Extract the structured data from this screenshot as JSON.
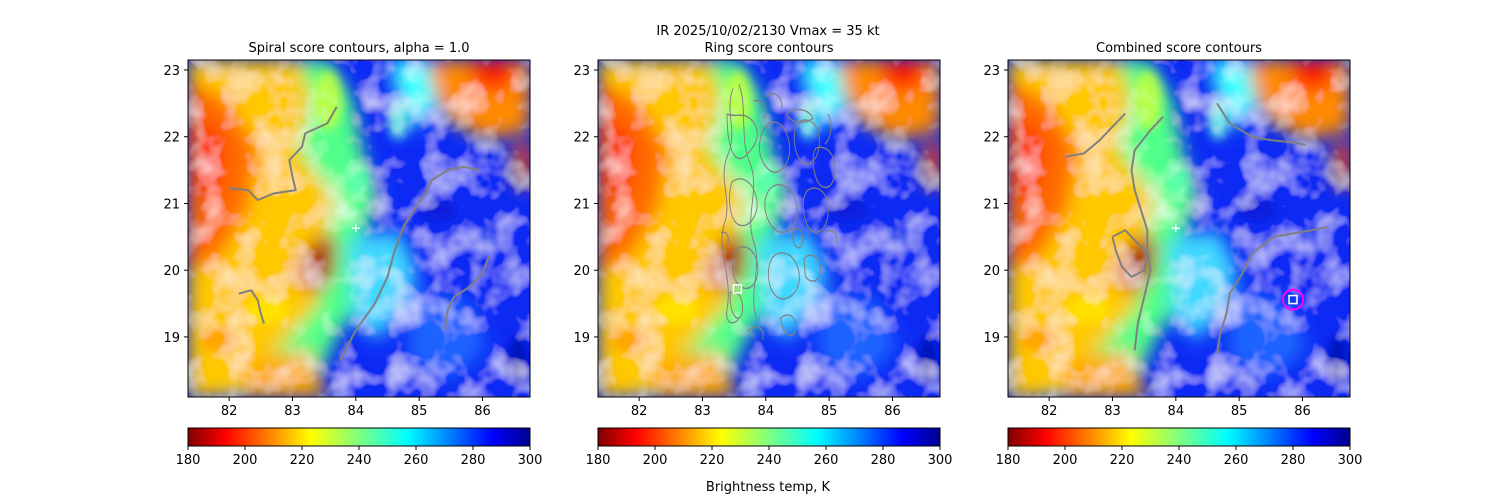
{
  "figure": {
    "suptitle_line1": "IR  2025/10/02/2130    Vmax = 35 kt",
    "colorbar_label": "Brightness temp, K"
  },
  "chart_data": [
    {
      "type": "heatmap",
      "title": "Spiral score contours, alpha =  1.0",
      "xlim": [
        81.35,
        86.75
      ],
      "ylim": [
        18.1,
        23.15
      ],
      "xticks": [
        "82",
        "83",
        "84",
        "85",
        "86"
      ],
      "yticks": [
        "19",
        "20",
        "21",
        "22",
        "23"
      ],
      "colorbar": {
        "cmap": "jet_r",
        "range": [
          180,
          300
        ],
        "ticks": [
          "180",
          "200",
          "220",
          "240",
          "260",
          "280",
          "300"
        ]
      },
      "storm_center": {
        "x": 84.0,
        "y": 20.63,
        "marker": "plus",
        "color": "#ffffff"
      },
      "contours": [
        {
          "name": "spiral-contour-1",
          "points": [
            [
              82.0,
              21.23
            ],
            [
              82.3,
              21.2
            ],
            [
              82.45,
              21.05
            ],
            [
              82.7,
              21.15
            ],
            [
              83.05,
              21.2
            ],
            [
              83.0,
              21.4
            ],
            [
              82.95,
              21.65
            ],
            [
              83.15,
              21.85
            ],
            [
              83.2,
              22.05
            ],
            [
              83.55,
              22.2
            ],
            [
              83.7,
              22.45
            ]
          ]
        },
        {
          "name": "spiral-contour-2",
          "points": [
            [
              83.75,
              18.65
            ],
            [
              84.0,
              19.1
            ],
            [
              84.3,
              19.5
            ],
            [
              84.5,
              19.9
            ],
            [
              84.6,
              20.25
            ],
            [
              84.75,
              20.65
            ],
            [
              84.95,
              20.95
            ],
            [
              85.1,
              21.15
            ],
            [
              85.2,
              21.35
            ],
            [
              85.45,
              21.5
            ],
            [
              85.7,
              21.55
            ],
            [
              85.95,
              21.5
            ]
          ]
        },
        {
          "name": "spiral-contour-3",
          "points": [
            [
              85.4,
              19.1
            ],
            [
              85.45,
              19.4
            ],
            [
              85.55,
              19.6
            ],
            [
              85.8,
              19.75
            ],
            [
              86.0,
              19.95
            ],
            [
              86.1,
              20.2
            ]
          ]
        },
        {
          "name": "spiral-contour-4",
          "points": [
            [
              82.15,
              19.65
            ],
            [
              82.35,
              19.7
            ],
            [
              82.45,
              19.55
            ],
            [
              82.5,
              19.35
            ],
            [
              82.55,
              19.2
            ]
          ]
        }
      ],
      "ring_center": null
    },
    {
      "type": "heatmap",
      "title": "Ring score contours",
      "xlim": [
        81.35,
        86.75
      ],
      "ylim": [
        18.1,
        23.15
      ],
      "xticks": [
        "82",
        "83",
        "84",
        "85",
        "86"
      ],
      "yticks": [
        "19",
        "20",
        "21",
        "22",
        "23"
      ],
      "colorbar": {
        "cmap": "jet_r",
        "range": [
          180,
          300
        ],
        "ticks": [
          "180",
          "200",
          "220",
          "240",
          "260",
          "280",
          "300"
        ]
      },
      "storm_center": null,
      "contour_region": {
        "xmin": 83.2,
        "xmax": 86.4,
        "ymin": 18.55,
        "ymax": 22.85
      },
      "contours": [],
      "ring_center": {
        "x": 83.55,
        "y": 19.72,
        "marker": "square",
        "color": "#ffffff",
        "circle": false
      }
    },
    {
      "type": "heatmap",
      "title": "Combined score contours",
      "xlim": [
        81.35,
        86.75
      ],
      "ylim": [
        18.1,
        23.15
      ],
      "xticks": [
        "82",
        "83",
        "84",
        "85",
        "86"
      ],
      "yticks": [
        "19",
        "20",
        "21",
        "22",
        "23"
      ],
      "colorbar": {
        "cmap": "jet_r",
        "range": [
          180,
          300
        ],
        "ticks": [
          "180",
          "200",
          "220",
          "240",
          "260",
          "280",
          "300"
        ]
      },
      "storm_center": {
        "x": 84.0,
        "y": 20.63,
        "marker": "plus",
        "color": "#ffffff"
      },
      "contours": [
        {
          "name": "combined-contour-1",
          "points": [
            [
              82.25,
              21.7
            ],
            [
              82.55,
              21.75
            ],
            [
              82.8,
              21.95
            ],
            [
              83.05,
              22.2
            ],
            [
              83.2,
              22.35
            ]
          ]
        },
        {
          "name": "combined-contour-2",
          "points": [
            [
              83.35,
              18.8
            ],
            [
              83.4,
              19.2
            ],
            [
              83.5,
              19.6
            ],
            [
              83.6,
              20.0
            ],
            [
              83.55,
              20.3
            ],
            [
              83.55,
              20.6
            ],
            [
              83.45,
              20.9
            ],
            [
              83.35,
              21.2
            ],
            [
              83.3,
              21.5
            ],
            [
              83.35,
              21.8
            ],
            [
              83.6,
              22.1
            ],
            [
              83.8,
              22.3
            ]
          ]
        },
        {
          "name": "combined-contour-3",
          "points": [
            [
              83.0,
              20.5
            ],
            [
              83.2,
              20.6
            ],
            [
              83.35,
              20.45
            ],
            [
              83.55,
              20.25
            ],
            [
              83.5,
              20.0
            ],
            [
              83.3,
              19.9
            ],
            [
              83.15,
              20.05
            ],
            [
              83.05,
              20.3
            ],
            [
              83.0,
              20.5
            ]
          ]
        },
        {
          "name": "combined-contour-4",
          "points": [
            [
              84.65,
              18.75
            ],
            [
              84.7,
              19.05
            ],
            [
              84.8,
              19.35
            ],
            [
              84.85,
              19.65
            ],
            [
              85.05,
              19.95
            ],
            [
              85.2,
              20.25
            ],
            [
              85.55,
              20.5
            ],
            [
              85.85,
              20.55
            ],
            [
              86.15,
              20.6
            ],
            [
              86.4,
              20.65
            ]
          ]
        },
        {
          "name": "combined-contour-5",
          "points": [
            [
              84.65,
              22.5
            ],
            [
              84.85,
              22.2
            ],
            [
              85.2,
              22.0
            ],
            [
              85.5,
              21.95
            ],
            [
              85.8,
              21.92
            ],
            [
              86.05,
              21.88
            ]
          ]
        }
      ],
      "ring_center": {
        "x": 85.85,
        "y": 19.56,
        "marker": "square",
        "color": "#ffffff",
        "circle": true,
        "circle_color": "#ff00ff"
      }
    }
  ]
}
